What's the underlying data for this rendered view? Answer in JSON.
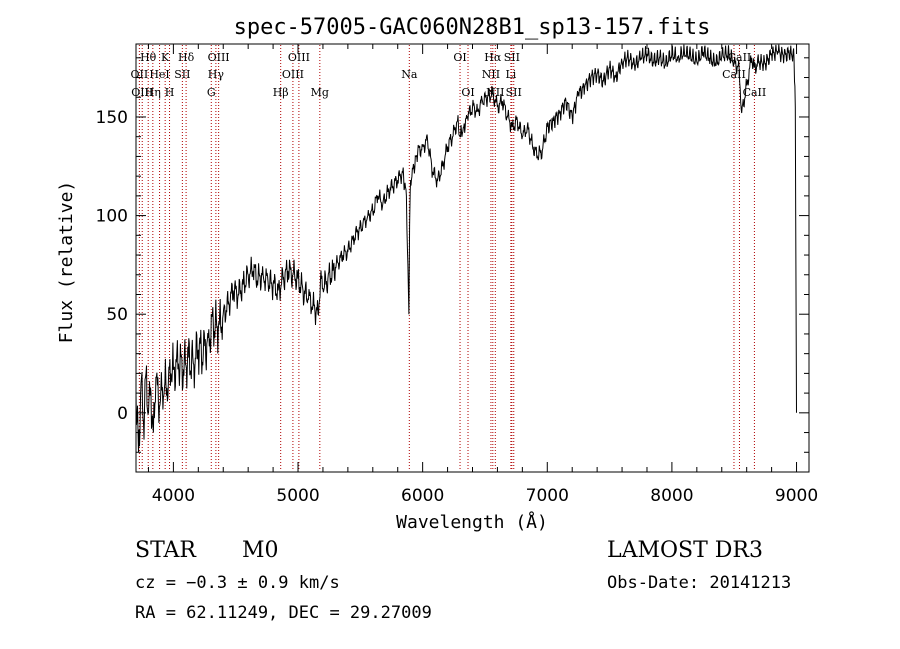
{
  "chart_data": {
    "type": "line",
    "title": "spec-57005-GAC060N28B1_sp13-157.fits",
    "xlabel": "Wavelength (Å)",
    "ylabel": "Flux (relative)",
    "xlim": [
      3700,
      9100
    ],
    "ylim": [
      -30,
      187
    ],
    "x_ticks": [
      4000,
      5000,
      6000,
      7000,
      8000,
      9000
    ],
    "x_tick_labels": [
      "4000",
      "5000",
      "6000",
      "7000",
      "8000",
      "9000"
    ],
    "y_ticks": [
      0,
      50,
      100,
      150
    ],
    "y_tick_labels": [
      "0",
      "50",
      "100",
      "150"
    ],
    "x_minor_step": 200,
    "y_minor_step": 10,
    "line_color": "#000000",
    "marker_color": "#b00000",
    "spectrum": {
      "name": "flux",
      "x": [
        3700,
        3720,
        3740,
        3760,
        3780,
        3800,
        3820,
        3840,
        3860,
        3880,
        3900,
        3920,
        3940,
        3960,
        3980,
        4000,
        4040,
        4080,
        4120,
        4160,
        4200,
        4240,
        4280,
        4320,
        4360,
        4400,
        4440,
        4480,
        4520,
        4560,
        4600,
        4640,
        4680,
        4720,
        4760,
        4800,
        4840,
        4880,
        4920,
        4960,
        5000,
        5040,
        5080,
        5120,
        5160,
        5180,
        5200,
        5240,
        5280,
        5320,
        5360,
        5400,
        5440,
        5480,
        5520,
        5560,
        5600,
        5640,
        5680,
        5720,
        5760,
        5800,
        5840,
        5870,
        5890,
        5895,
        5900,
        5910,
        5930,
        5960,
        6000,
        6040,
        6080,
        6120,
        6160,
        6200,
        6240,
        6280,
        6300,
        6330,
        6360,
        6400,
        6440,
        6480,
        6520,
        6563,
        6600,
        6640,
        6680,
        6720,
        6760,
        6800,
        6840,
        6880,
        6920,
        6960,
        7000,
        7050,
        7100,
        7150,
        7200,
        7250,
        7300,
        7350,
        7400,
        7450,
        7500,
        7550,
        7600,
        7650,
        7700,
        7750,
        7800,
        7850,
        7900,
        7950,
        8000,
        8050,
        8100,
        8150,
        8200,
        8250,
        8300,
        8350,
        8400,
        8450,
        8500,
        8540,
        8560,
        8600,
        8640,
        8660,
        8700,
        8750,
        8800,
        8850,
        8900,
        8950,
        8980,
        8990,
        9000
      ],
      "y": [
        10,
        -20,
        15,
        -5,
        20,
        0,
        10,
        -10,
        18,
        5,
        12,
        8,
        15,
        16,
        20,
        22,
        25,
        22,
        28,
        25,
        32,
        30,
        38,
        45,
        42,
        50,
        55,
        62,
        60,
        65,
        70,
        72,
        68,
        70,
        66,
        65,
        62,
        68,
        72,
        70,
        68,
        62,
        58,
        55,
        50,
        68,
        63,
        68,
        72,
        76,
        80,
        82,
        88,
        92,
        95,
        100,
        102,
        110,
        106,
        112,
        115,
        118,
        122,
        110,
        50,
        95,
        112,
        118,
        125,
        132,
        135,
        138,
        122,
        118,
        125,
        135,
        140,
        148,
        140,
        145,
        150,
        155,
        153,
        158,
        160,
        162,
        155,
        158,
        150,
        145,
        148,
        140,
        145,
        136,
        130,
        133,
        145,
        148,
        152,
        158,
        150,
        162,
        165,
        170,
        172,
        168,
        175,
        170,
        178,
        180,
        176,
        180,
        182,
        178,
        180,
        177,
        182,
        180,
        183,
        181,
        178,
        183,
        180,
        177,
        181,
        182,
        178,
        174,
        152,
        166,
        180,
        175,
        178,
        177,
        182,
        183,
        181,
        183,
        180,
        155,
        0
      ]
    },
    "line_markers": [
      {
        "label": "Hθ",
        "x": 3798
      },
      {
        "label": "OII",
        "x": 3727
      },
      {
        "label": "OIII",
        "x": 3750
      },
      {
        "label": "K",
        "x": 3934
      },
      {
        "label": "HeI",
        "x": 3889
      },
      {
        "label": "Hη",
        "x": 3835
      },
      {
        "label": "SII",
        "x": 4072
      },
      {
        "label": "H",
        "x": 3969
      },
      {
        "label": "Hδ",
        "x": 4102
      },
      {
        "label": "OIII",
        "x": 4363
      },
      {
        "label": "Hγ",
        "x": 4341
      },
      {
        "label": "G",
        "x": 4304
      },
      {
        "label": "Hβ",
        "x": 4861
      },
      {
        "label": "OIII",
        "x": 5007
      },
      {
        "label": "OIII",
        "x": 4959
      },
      {
        "label": "Mg",
        "x": 5175
      },
      {
        "label": "Na",
        "x": 5893
      },
      {
        "label": "OI",
        "x": 6300
      },
      {
        "label": "OI",
        "x": 6364
      },
      {
        "label": "Hα",
        "x": 6563
      },
      {
        "label": "NII",
        "x": 6548
      },
      {
        "label": "NII",
        "x": 6583
      },
      {
        "label": "SII",
        "x": 6716
      },
      {
        "label": "Li",
        "x": 6708
      },
      {
        "label": "SII",
        "x": 6731
      },
      {
        "label": "CaII",
        "x": 8498
      },
      {
        "label": "CaII",
        "x": 8542
      },
      {
        "label": "CaII",
        "x": 8662
      }
    ],
    "marker_label_rows": [
      [
        {
          "text": "Hθ",
          "x": 3798
        },
        {
          "text": "K",
          "x": 3934
        },
        {
          "text": "Hδ",
          "x": 4102
        },
        {
          "text": "OIII",
          "x": 4363
        },
        {
          "text": "OIII",
          "x": 5007
        },
        {
          "text": "OI",
          "x": 6300
        },
        {
          "text": "Hα",
          "x": 6563
        },
        {
          "text": "SII",
          "x": 6716
        },
        {
          "text": "CaII",
          "x": 8542
        }
      ],
      [
        {
          "text": "OII",
          "x": 3727
        },
        {
          "text": "HeI",
          "x": 3889
        },
        {
          "text": "SII",
          "x": 4072
        },
        {
          "text": "Hγ",
          "x": 4341
        },
        {
          "text": "OIII",
          "x": 4959
        },
        {
          "text": "Na",
          "x": 5893
        },
        {
          "text": "NII",
          "x": 6548
        },
        {
          "text": "Li",
          "x": 6708
        },
        {
          "text": "CaII",
          "x": 8498
        }
      ],
      [
        {
          "text": "OIII",
          "x": 3750
        },
        {
          "text": "Hη",
          "x": 3835
        },
        {
          "text": "H",
          "x": 3969
        },
        {
          "text": "G",
          "x": 4304
        },
        {
          "text": "Hβ",
          "x": 4861
        },
        {
          "text": "Mg",
          "x": 5175
        },
        {
          "text": "OI",
          "x": 6364
        },
        {
          "text": "NII",
          "x": 6583
        },
        {
          "text": "SII",
          "x": 6731
        },
        {
          "text": "CaII",
          "x": 8662
        }
      ]
    ]
  },
  "info": {
    "class": "STAR",
    "subclass": "M0",
    "survey": "LAMOST DR3",
    "cz": "cz = −0.3 ± 0.9 km/s",
    "obs_date": "Obs-Date: 20141213",
    "radec": "RA =  62.11249, DEC =  29.27009"
  }
}
